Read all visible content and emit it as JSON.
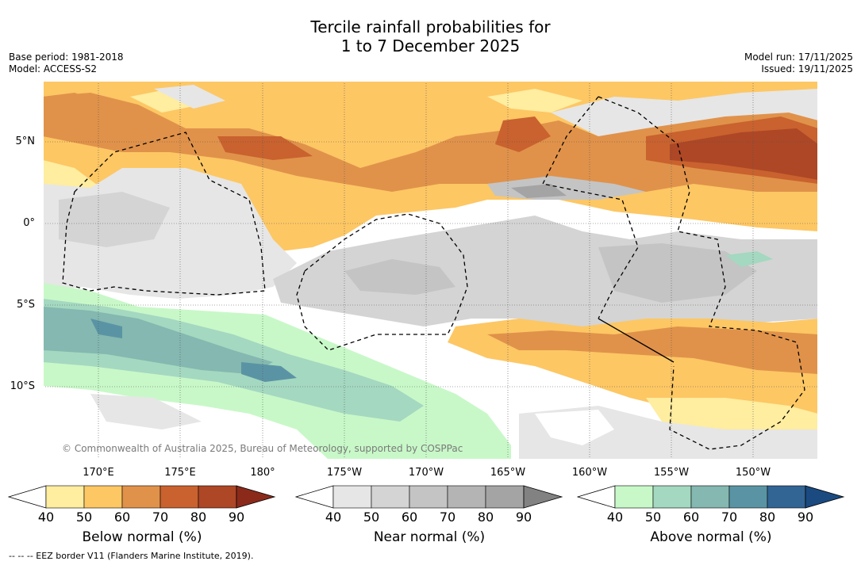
{
  "title_line1": "Tercile rainfall probabilities for",
  "title_line2": "1 to 7 December 2025",
  "base_period": "Base period: 1981-2018",
  "model": "Model: ACCESS-S2",
  "model_run": "Model run: 17/11/2025",
  "issued": "Issued: 19/11/2025",
  "copyright": "© Commonwealth of Australia 2025, Bureau of Meteorology, supported by COSPPac",
  "footer": "-- -- -- EEZ border V11 (Flanders Marine Institute, 2019).",
  "map": {
    "lat_labels": [
      "5°N",
      "0°",
      "5°S",
      "10°S"
    ],
    "lon_labels": [
      "170°E",
      "175°E",
      "180°",
      "175°W",
      "170°W",
      "165°W",
      "160°W",
      "155°W",
      "150°W"
    ]
  },
  "colorbars": [
    {
      "title": "Below normal (%)",
      "ticks": [
        "40",
        "50",
        "60",
        "70",
        "80",
        "90"
      ],
      "colors": [
        "#ffeda0",
        "#fdc764",
        "#e0924a",
        "#c9622e",
        "#ad4726",
        "#8b2a1a"
      ]
    },
    {
      "title": "Near normal (%)",
      "ticks": [
        "40",
        "50",
        "60",
        "70",
        "80",
        "90"
      ],
      "colors": [
        "#e6e6e6",
        "#d4d4d4",
        "#c4c4c4",
        "#b4b4b4",
        "#a4a4a4",
        "#828282"
      ]
    },
    {
      "title": "Above normal (%)",
      "ticks": [
        "40",
        "50",
        "60",
        "70",
        "80",
        "90"
      ],
      "colors": [
        "#c8f8c8",
        "#a4d8c0",
        "#84b8b0",
        "#5a94a4",
        "#326494",
        "#1a4a80"
      ]
    }
  ],
  "colors": {
    "white": "#ffffff",
    "grid": "#555555"
  }
}
